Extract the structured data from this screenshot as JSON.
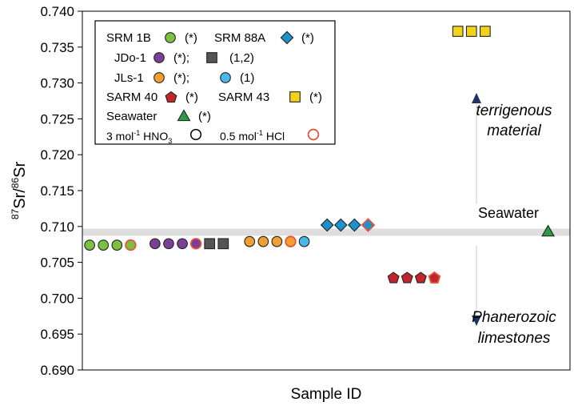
{
  "chart_data": {
    "type": "scatter",
    "xlabel": "Sample ID",
    "ylabel": {
      "sup1": "87",
      "base1": "Sr/",
      "sup2": "86",
      "base2": "Sr"
    },
    "ylim": [
      0.69,
      0.74
    ],
    "xlim": [
      0,
      100
    ],
    "yticks": [
      "0.690",
      "0.695",
      "0.700",
      "0.705",
      "0.710",
      "0.715",
      "0.720",
      "0.725",
      "0.730",
      "0.735",
      "0.740"
    ],
    "seawater_band": {
      "low": 0.7087,
      "high": 0.7097,
      "color": "#dedede"
    },
    "grid": false,
    "legend_position": "top-left",
    "series": [
      {
        "name": "SRM 1B",
        "marker": "circle",
        "fill": "#7ac143",
        "stroke": "#222222",
        "points": [
          {
            "x": 1.5,
            "y": 0.7074
          },
          {
            "x": 4.3,
            "y": 0.7074
          },
          {
            "x": 7.1,
            "y": 0.7074
          }
        ]
      },
      {
        "name": "SRM 1B",
        "marker": "circle",
        "fill": "#7ac143",
        "stroke": "#e8553a",
        "points": [
          {
            "x": 9.9,
            "y": 0.7074
          }
        ]
      },
      {
        "name": "JDo-1",
        "marker": "circle",
        "fill": "#7b3f97",
        "stroke": "#222222",
        "points": [
          {
            "x": 14.9,
            "y": 0.7076
          },
          {
            "x": 17.7,
            "y": 0.7076
          },
          {
            "x": 20.5,
            "y": 0.7076
          }
        ]
      },
      {
        "name": "JDo-1",
        "marker": "circle",
        "fill": "#7b3f97",
        "stroke": "#e8553a",
        "points": [
          {
            "x": 23.3,
            "y": 0.7076
          }
        ]
      },
      {
        "name": "JDo-1",
        "marker": "square",
        "fill": "#555555",
        "stroke": "#222222",
        "points": [
          {
            "x": 26.1,
            "y": 0.7076
          },
          {
            "x": 28.9,
            "y": 0.7076
          }
        ]
      },
      {
        "name": "JLs-1",
        "marker": "circle",
        "fill": "#f0a030",
        "stroke": "#222222",
        "points": [
          {
            "x": 34.3,
            "y": 0.7079
          },
          {
            "x": 37.1,
            "y": 0.7079
          },
          {
            "x": 39.9,
            "y": 0.7079
          }
        ]
      },
      {
        "name": "JLs-1",
        "marker": "circle",
        "fill": "#f0a030",
        "stroke": "#e8553a",
        "points": [
          {
            "x": 42.7,
            "y": 0.7079
          }
        ]
      },
      {
        "name": "JLs-1",
        "marker": "circle",
        "fill": "#48b8e8",
        "stroke": "#222222",
        "points": [
          {
            "x": 45.5,
            "y": 0.7079
          }
        ]
      },
      {
        "name": "SRM 88A",
        "marker": "diamond",
        "fill": "#1e90cc",
        "stroke": "#222222",
        "points": [
          {
            "x": 50.2,
            "y": 0.7102
          },
          {
            "x": 53.0,
            "y": 0.7102
          },
          {
            "x": 55.8,
            "y": 0.7102
          }
        ]
      },
      {
        "name": "SRM 88A",
        "marker": "diamond",
        "fill": "#1e90cc",
        "stroke": "#e8553a",
        "points": [
          {
            "x": 58.6,
            "y": 0.7102
          }
        ]
      },
      {
        "name": "SARM 40",
        "marker": "pentagon",
        "fill": "#c0272d",
        "stroke": "#222222",
        "points": [
          {
            "x": 63.8,
            "y": 0.7029
          },
          {
            "x": 66.6,
            "y": 0.7029
          },
          {
            "x": 69.4,
            "y": 0.7029
          }
        ]
      },
      {
        "name": "SARM 40",
        "marker": "pentagon",
        "fill": "#c0272d",
        "stroke": "#e8553a",
        "points": [
          {
            "x": 72.2,
            "y": 0.7029
          }
        ]
      },
      {
        "name": "SARM 43",
        "marker": "square",
        "fill": "#f5d21a",
        "stroke": "#222222",
        "points": [
          {
            "x": 77.0,
            "y": 0.7372
          },
          {
            "x": 79.8,
            "y": 0.7372
          },
          {
            "x": 82.6,
            "y": 0.7372
          }
        ]
      },
      {
        "name": "Seawater",
        "marker": "triangle",
        "fill": "#2e9a47",
        "stroke": "#222222",
        "points": [
          {
            "x": 95.5,
            "y": 0.7093
          }
        ]
      }
    ],
    "legend": {
      "rows": [
        [
          {
            "text": "SRM 1B"
          },
          {
            "marker": "circle",
            "fill": "#7ac143"
          },
          {
            "text": "(*)"
          },
          {
            "text": "SRM 88A"
          },
          {
            "marker": "diamond",
            "fill": "#1e90cc"
          },
          {
            "text": "(*)"
          }
        ],
        [
          {
            "text": "JDo-1"
          },
          {
            "marker": "circle",
            "fill": "#7b3f97"
          },
          {
            "text": "(*);"
          },
          {
            "marker": "square",
            "fill": "#555555"
          },
          {
            "text": "(1,2)"
          }
        ],
        [
          {
            "text": "JLs-1"
          },
          {
            "marker": "circle",
            "fill": "#f0a030"
          },
          {
            "text": "(*);"
          },
          {
            "marker": "circle",
            "fill": "#48b8e8"
          },
          {
            "text": "(1)"
          }
        ],
        [
          {
            "text": "SARM 40"
          },
          {
            "marker": "pentagon",
            "fill": "#c0272d"
          },
          {
            "text": "(*)"
          },
          {
            "text": "SARM 43"
          },
          {
            "marker": "square",
            "fill": "#f5d21a"
          },
          {
            "text": "(*)"
          }
        ],
        [
          {
            "text": "Seawater"
          },
          {
            "marker": "triangle",
            "fill": "#2e9a47"
          },
          {
            "text": "(*)"
          }
        ]
      ],
      "acid_row": {
        "hno3": {
          "prefix": "3 mol",
          "sup": "-1",
          "text": " HNO",
          "sub": "3"
        },
        "hcl": {
          "prefix": "0.5 mol",
          "sup": "-1",
          "text": " HCl"
        }
      }
    },
    "annotations": {
      "terrigenous": [
        "terrigenous",
        "material"
      ],
      "seawater_label": "Seawater",
      "phanerozoic": [
        "Phanerozoic",
        "limestones"
      ]
    }
  }
}
